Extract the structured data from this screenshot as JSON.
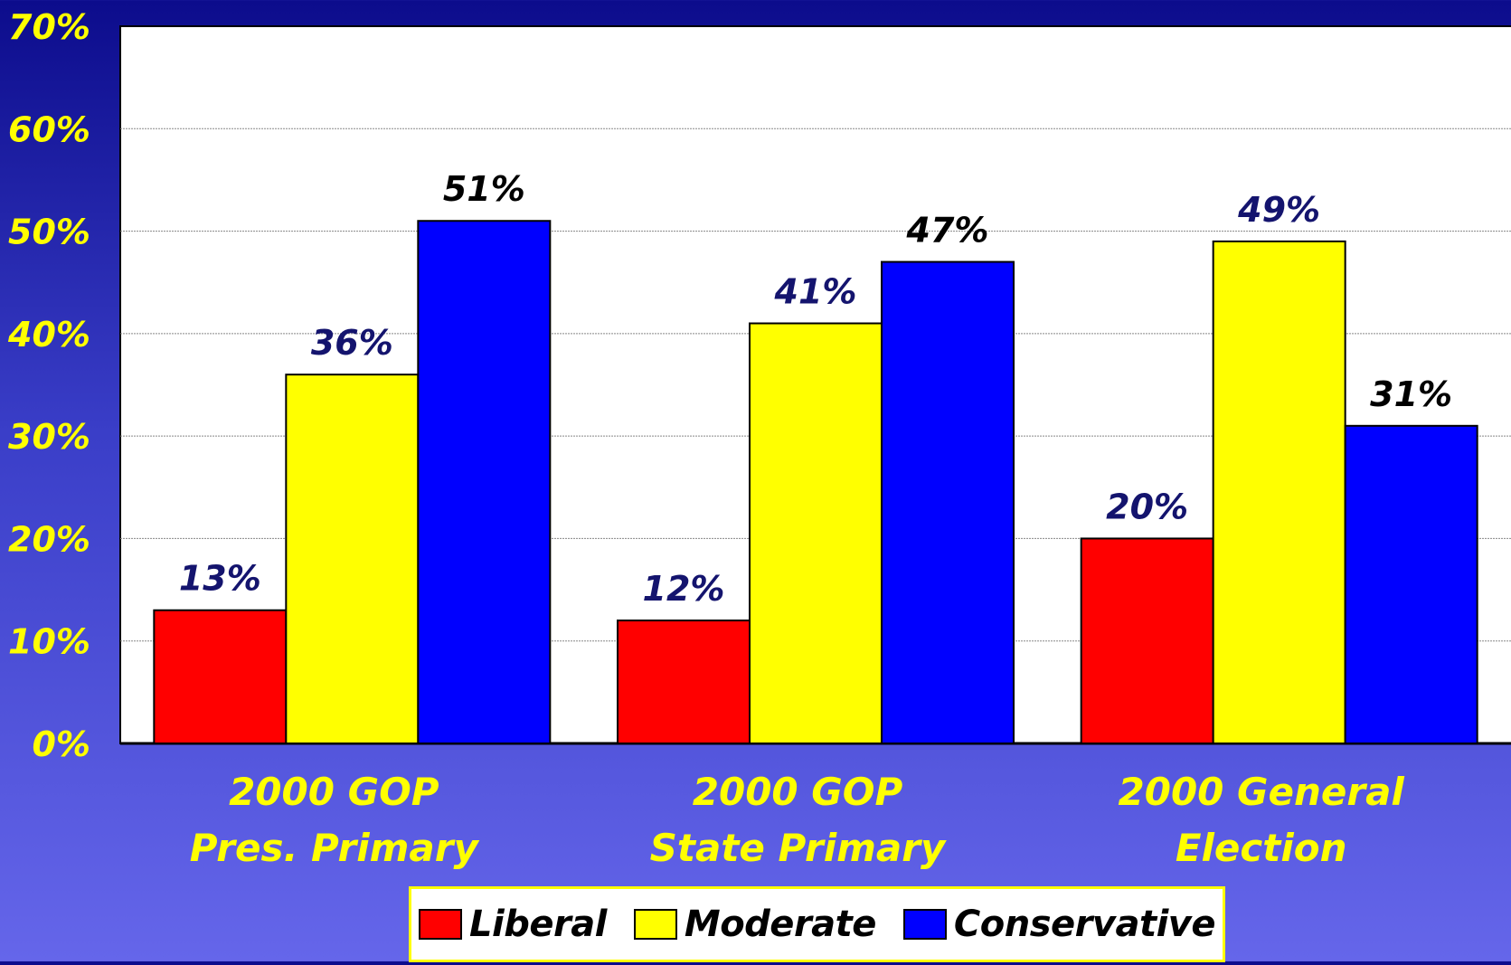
{
  "chart_data": {
    "type": "bar",
    "categories": [
      [
        "2000 GOP",
        "Pres. Primary"
      ],
      [
        "2000 GOP",
        "State Primary"
      ],
      [
        "2000 General",
        "Election"
      ]
    ],
    "series": [
      {
        "name": "Liberal",
        "color": "#ff0000",
        "label_color": "#14146e",
        "values": [
          13,
          12,
          20
        ],
        "labels": [
          "13%",
          "12%",
          "20%"
        ]
      },
      {
        "name": "Moderate",
        "color": "#ffff00",
        "label_color": "#14146e",
        "values": [
          36,
          41,
          49
        ],
        "labels": [
          "36%",
          "41%",
          "49%"
        ]
      },
      {
        "name": "Conservative",
        "color": "#0000ff",
        "label_color": "#000000",
        "values": [
          51,
          47,
          31
        ],
        "labels": [
          "51%",
          "47%",
          "31%"
        ]
      }
    ],
    "y_ticks": [
      "0%",
      "10%",
      "20%",
      "30%",
      "40%",
      "50%",
      "60%",
      "70%"
    ],
    "ylim": [
      0,
      70
    ],
    "grid": true,
    "legend_position": "bottom",
    "tick_label_color": "#ffff00",
    "plot_background": "#ffffff"
  }
}
